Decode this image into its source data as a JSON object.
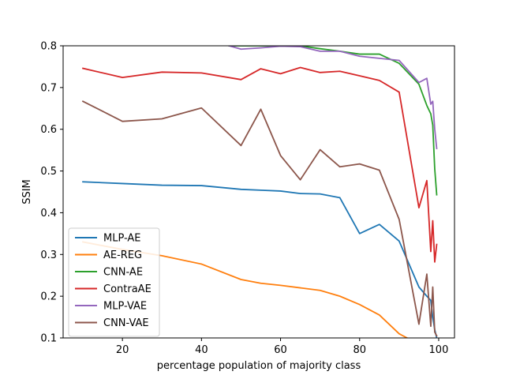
{
  "chart_data": {
    "type": "line",
    "title": "",
    "xlabel": "percentage population of majority class",
    "ylabel": "SSIM",
    "xlim": [
      5,
      104
    ],
    "ylim": [
      0.1,
      0.8
    ],
    "xticks": [
      20,
      40,
      60,
      80,
      100
    ],
    "yticks": [
      0.1,
      0.2,
      0.3,
      0.4,
      0.5,
      0.6,
      0.7,
      0.8
    ],
    "xtick_labels": [
      "20",
      "40",
      "60",
      "80",
      "100"
    ],
    "ytick_labels": [
      "0.1",
      "0.2",
      "0.3",
      "0.4",
      "0.5",
      "0.6",
      "0.7",
      "0.8"
    ],
    "grid": false,
    "legend_position": "lower-left",
    "series": [
      {
        "name": "MLP-AE",
        "color": "#1f77b4",
        "x": [
          10,
          20,
          30,
          40,
          50,
          55,
          60,
          65,
          70,
          75,
          80,
          85,
          90,
          95,
          97,
          98,
          98.5,
          99,
          99.5
        ],
        "y": [
          0.474,
          0.47,
          0.466,
          0.465,
          0.456,
          0.454,
          0.452,
          0.446,
          0.445,
          0.436,
          0.35,
          0.372,
          0.332,
          0.222,
          0.2,
          0.19,
          0.15,
          0.12,
          0.1
        ]
      },
      {
        "name": "AE-REG",
        "color": "#ff7f0e",
        "x": [
          10,
          20,
          30,
          40,
          50,
          55,
          60,
          65,
          70,
          75,
          80,
          85,
          90,
          92
        ],
        "y": [
          0.33,
          0.312,
          0.297,
          0.277,
          0.24,
          0.231,
          0.226,
          0.22,
          0.214,
          0.2,
          0.18,
          0.155,
          0.11,
          0.1
        ]
      },
      {
        "name": "CNN-AE",
        "color": "#2ca02c",
        "x": [
          47,
          50,
          55,
          60,
          65,
          70,
          75,
          80,
          85,
          90,
          95,
          97,
          98,
          98.5,
          99,
          99.5
        ],
        "y": [
          0.8,
          0.8,
          0.8,
          0.8,
          0.8,
          0.793,
          0.787,
          0.78,
          0.78,
          0.758,
          0.708,
          0.657,
          0.637,
          0.61,
          0.505,
          0.443
        ]
      },
      {
        "name": "ContraAE",
        "color": "#d62728",
        "x": [
          10,
          20,
          30,
          40,
          50,
          55,
          60,
          65,
          70,
          75,
          80,
          85,
          90,
          95,
          97,
          98,
          98.5,
          99,
          99.5
        ],
        "y": [
          0.746,
          0.724,
          0.737,
          0.735,
          0.719,
          0.745,
          0.733,
          0.748,
          0.736,
          0.739,
          0.728,
          0.717,
          0.689,
          0.412,
          0.477,
          0.307,
          0.381,
          0.282,
          0.324
        ]
      },
      {
        "name": "MLP-VAE",
        "color": "#9467bd",
        "x": [
          47,
          50,
          55,
          60,
          65,
          70,
          75,
          80,
          85,
          90,
          95,
          97,
          98,
          98.5,
          99,
          99.5
        ],
        "y": [
          0.8,
          0.792,
          0.795,
          0.799,
          0.798,
          0.787,
          0.787,
          0.775,
          0.77,
          0.765,
          0.712,
          0.722,
          0.66,
          0.667,
          0.6,
          0.554
        ]
      },
      {
        "name": "CNN-VAE",
        "color": "#8c564b",
        "x": [
          10,
          20,
          30,
          40,
          50,
          55,
          60,
          65,
          70,
          75,
          80,
          85,
          90,
          95,
          97,
          98,
          98.5,
          99,
          99.5
        ],
        "y": [
          0.667,
          0.619,
          0.625,
          0.651,
          0.561,
          0.648,
          0.537,
          0.479,
          0.551,
          0.51,
          0.517,
          0.502,
          0.384,
          0.133,
          0.253,
          0.128,
          0.222,
          0.114,
          0.105
        ]
      }
    ]
  }
}
